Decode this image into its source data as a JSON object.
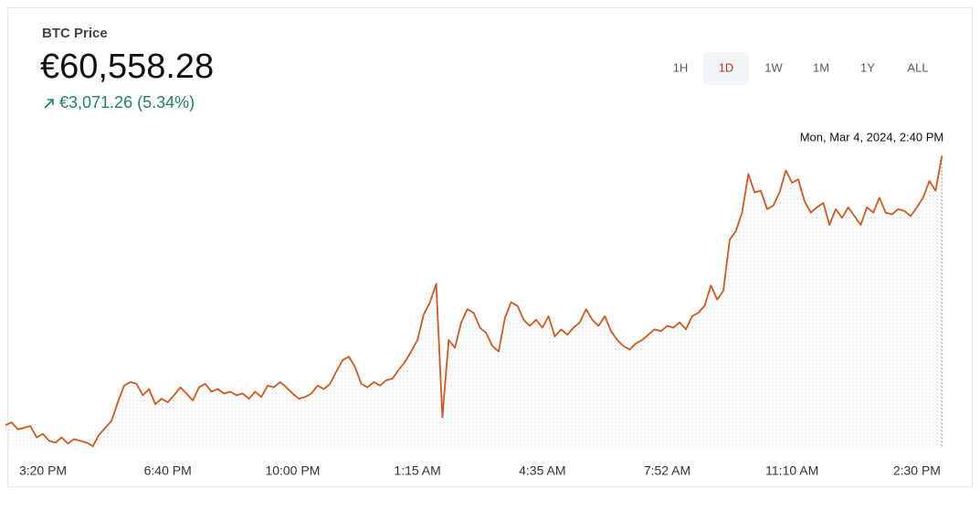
{
  "header": {
    "label": "BTC Price",
    "price": "€60,558.28",
    "change": "€3,071.26 (5.34%)"
  },
  "timeframes": [
    "1H",
    "1D",
    "1W",
    "1M",
    "1Y",
    "ALL"
  ],
  "selected_timeframe": "1D",
  "chart_data": {
    "type": "line",
    "annotation": "Mon, Mar 4, 2024, 2:40 PM",
    "color": "#d4581c",
    "ylim": [
      57230,
      60770
    ],
    "grid": false,
    "categories": [
      null,
      null,
      null,
      null,
      null,
      null,
      "3:20 PM",
      null,
      null,
      null,
      null,
      null,
      null,
      null,
      null,
      null,
      null,
      null,
      null,
      null,
      null,
      null,
      null,
      null,
      null,
      null,
      "6:40 PM",
      null,
      null,
      null,
      null,
      null,
      null,
      null,
      null,
      null,
      null,
      null,
      null,
      null,
      null,
      null,
      null,
      null,
      null,
      null,
      "10:00 PM",
      null,
      null,
      null,
      null,
      null,
      null,
      null,
      null,
      null,
      null,
      null,
      null,
      null,
      null,
      null,
      null,
      null,
      null,
      null,
      "1:15 AM",
      null,
      null,
      null,
      null,
      null,
      null,
      null,
      null,
      null,
      null,
      null,
      null,
      null,
      null,
      null,
      null,
      null,
      null,
      null,
      "4:35 AM",
      null,
      null,
      null,
      null,
      null,
      null,
      null,
      null,
      null,
      null,
      null,
      null,
      null,
      null,
      null,
      null,
      null,
      null,
      null,
      "7:52 AM",
      null,
      null,
      null,
      null,
      null,
      null,
      null,
      null,
      null,
      null,
      null,
      null,
      null,
      null,
      null,
      null,
      null,
      null,
      null,
      "11:10 AM",
      null,
      null,
      null,
      null,
      null,
      null,
      null,
      null,
      null,
      null,
      null,
      null,
      null,
      null,
      null,
      null,
      null,
      null,
      null,
      "2:30 PM",
      null,
      null,
      null,
      null
    ],
    "values": [
      57490,
      57520,
      57440,
      57460,
      57480,
      57350,
      57390,
      57310,
      57290,
      57350,
      57280,
      57330,
      57310,
      57290,
      57250,
      57380,
      57460,
      57540,
      57750,
      57940,
      57980,
      57960,
      57830,
      57900,
      57730,
      57790,
      57750,
      57830,
      57920,
      57850,
      57770,
      57920,
      57960,
      57870,
      57900,
      57850,
      57870,
      57830,
      57850,
      57790,
      57870,
      57810,
      57940,
      57920,
      57980,
      57920,
      57850,
      57790,
      57810,
      57850,
      57940,
      57900,
      57960,
      58100,
      58230,
      58270,
      58150,
      57960,
      57920,
      57980,
      57940,
      58000,
      58020,
      58120,
      58210,
      58330,
      58460,
      58750,
      58890,
      59100,
      57580,
      58460,
      58370,
      58660,
      58810,
      58770,
      58600,
      58540,
      58390,
      58330,
      58710,
      58890,
      58850,
      58690,
      58620,
      58690,
      58600,
      58730,
      58500,
      58580,
      58520,
      58600,
      58660,
      58810,
      58690,
      58620,
      58730,
      58560,
      58460,
      58390,
      58350,
      58420,
      58460,
      58520,
      58580,
      58560,
      58620,
      58600,
      58660,
      58580,
      58730,
      58770,
      58850,
      59080,
      58920,
      59020,
      59600,
      59700,
      59910,
      60350,
      60140,
      60160,
      59950,
      59990,
      60140,
      60390,
      60250,
      60290,
      60040,
      59910,
      59970,
      60020,
      59770,
      59950,
      59850,
      59970,
      59870,
      59770,
      59970,
      59910,
      60080,
      59910,
      59890,
      59950,
      59930,
      59870,
      59970,
      60080,
      60270,
      60160,
      60558.28
    ]
  }
}
